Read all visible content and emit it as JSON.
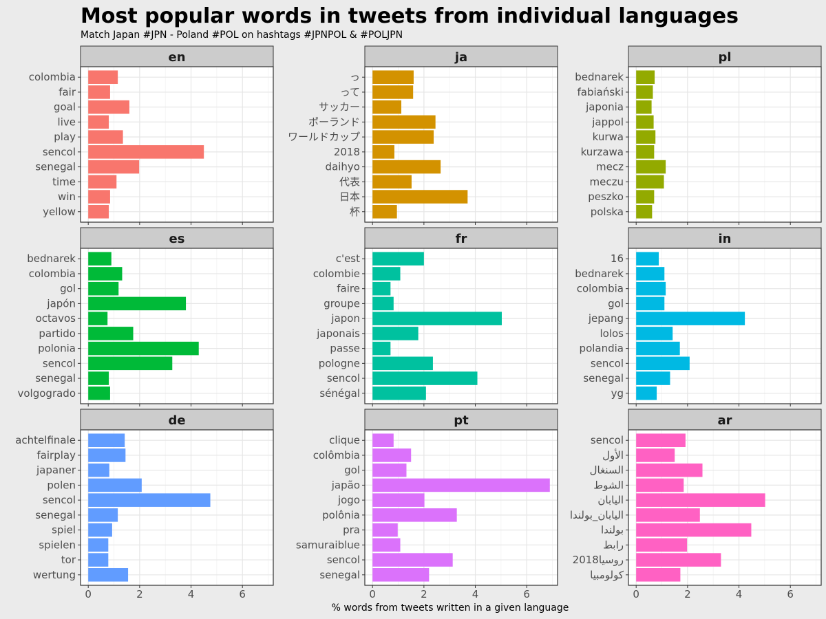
{
  "chart_data": {
    "type": "bar",
    "orientation": "horizontal",
    "title": "Most popular words in tweets from individual languages",
    "subtitle": "Match Japan #JPN - Poland #POL on hashtags #JPNPOL & #POLJPN",
    "xlabel": "% words from tweets written in a given language",
    "ylabel": "",
    "xlim": [
      -0.3,
      7.2
    ],
    "x_ticks": [
      "0",
      "2",
      "4",
      "6"
    ],
    "grid": true,
    "legend": "none",
    "panels": [
      {
        "name": "en",
        "color": "#F8766D",
        "categories": [
          "colombia",
          "fair",
          "goal",
          "live",
          "play",
          "sencol",
          "senegal",
          "time",
          "win",
          "yellow"
        ],
        "values": [
          1.15,
          0.85,
          1.6,
          0.8,
          1.35,
          4.5,
          1.98,
          1.1,
          0.85,
          0.8
        ]
      },
      {
        "name": "ja",
        "color": "#D39200",
        "categories": [
          "っ",
          "って",
          "サッカー",
          "ポーランド",
          "ワールドカップ",
          "2018",
          "daihyo",
          "代表",
          "日本",
          "杯"
        ],
        "values": [
          1.6,
          1.58,
          1.12,
          2.45,
          2.38,
          0.85,
          2.65,
          1.52,
          3.7,
          0.95
        ]
      },
      {
        "name": "pl",
        "color": "#93AA00",
        "categories": [
          "bednarek",
          "fabiański",
          "japonia",
          "jappol",
          "kurwa",
          "kurzawa",
          "mecz",
          "meczu",
          "peszko",
          "polska"
        ],
        "values": [
          0.72,
          0.65,
          0.6,
          0.68,
          0.75,
          0.7,
          1.15,
          1.08,
          0.7,
          0.62
        ]
      },
      {
        "name": "es",
        "color": "#00BA38",
        "categories": [
          "bednarek",
          "colombia",
          "gol",
          "japón",
          "octavos",
          "partido",
          "polonia",
          "sencol",
          "senegal",
          "volgogrado"
        ],
        "values": [
          0.9,
          1.32,
          1.18,
          3.8,
          0.75,
          1.75,
          4.3,
          3.27,
          0.8,
          0.85
        ]
      },
      {
        "name": "fr",
        "color": "#00C19F",
        "categories": [
          "c'est",
          "colombie",
          "faire",
          "groupe",
          "japon",
          "japonais",
          "passe",
          "pologne",
          "sencol",
          "sénégal"
        ],
        "values": [
          2.0,
          1.08,
          0.7,
          0.82,
          5.03,
          1.78,
          0.7,
          2.35,
          4.08,
          2.08
        ]
      },
      {
        "name": "in",
        "color": "#00B9E3",
        "categories": [
          "16",
          "bednarek",
          "colombia",
          "gol",
          "jepang",
          "lolos",
          "polandia",
          "sencol",
          "senegal",
          "yg"
        ],
        "values": [
          0.88,
          1.1,
          1.15,
          1.1,
          4.23,
          1.42,
          1.7,
          2.08,
          1.32,
          0.8
        ]
      },
      {
        "name": "de",
        "color": "#619CFF",
        "categories": [
          "achtelfinale",
          "fairplay",
          "japaner",
          "polen",
          "sencol",
          "senegal",
          "spiel",
          "spielen",
          "tor",
          "wertung"
        ],
        "values": [
          1.42,
          1.45,
          0.82,
          2.08,
          4.75,
          1.15,
          0.93,
          0.78,
          0.78,
          1.55
        ]
      },
      {
        "name": "pt",
        "color": "#DB72FB",
        "categories": [
          "clique",
          "colômbia",
          "gol",
          "japão",
          "jogo",
          "polônia",
          "pra",
          "samuraiblue",
          "sencol",
          "senegal"
        ],
        "values": [
          0.82,
          1.5,
          1.32,
          6.9,
          2.02,
          3.28,
          0.98,
          1.08,
          3.12,
          2.2
        ]
      },
      {
        "name": "ar",
        "color": "#FF61C3",
        "categories": [
          "sencol",
          "الأول",
          "السنغال",
          "الشوط",
          "اليابان",
          "اليابان_بولندا",
          "بولندا",
          "رابط",
          "روسيا2018",
          "كولومبيا"
        ],
        "values": [
          1.92,
          1.5,
          2.58,
          1.85,
          5.02,
          2.48,
          4.48,
          1.98,
          3.3,
          1.72
        ]
      }
    ]
  }
}
